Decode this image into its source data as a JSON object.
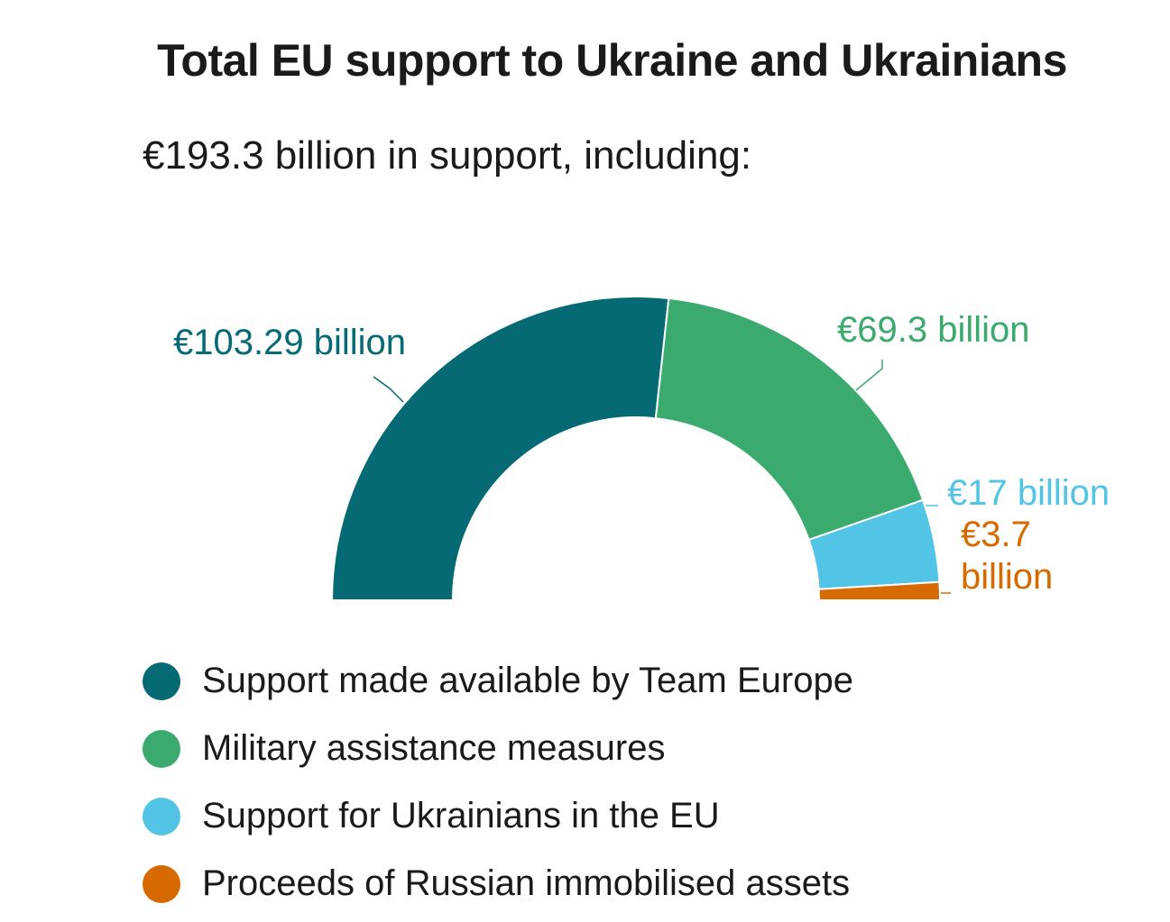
{
  "chart_data": {
    "type": "pie",
    "title": "Total EU support to Ukraine and Ukrainians",
    "subtitle": "€193.3 billion in support, including:",
    "categories": [
      "Support made available by Team Europe",
      "Military assistance measures",
      "Support for Ukrainians in the EU",
      "Proceeds of Russian immobilised assets"
    ],
    "values": [
      103.29,
      69.3,
      17,
      3.7
    ],
    "data_labels": [
      "€103.29 billion",
      "€69.3 billion",
      "€17 billion",
      "€3.7 billion"
    ],
    "colors": [
      "#066a75",
      "#3aaa6e",
      "#52c4e6",
      "#d66a00"
    ],
    "legend_position": "bottom",
    "shape": "half-donut"
  }
}
